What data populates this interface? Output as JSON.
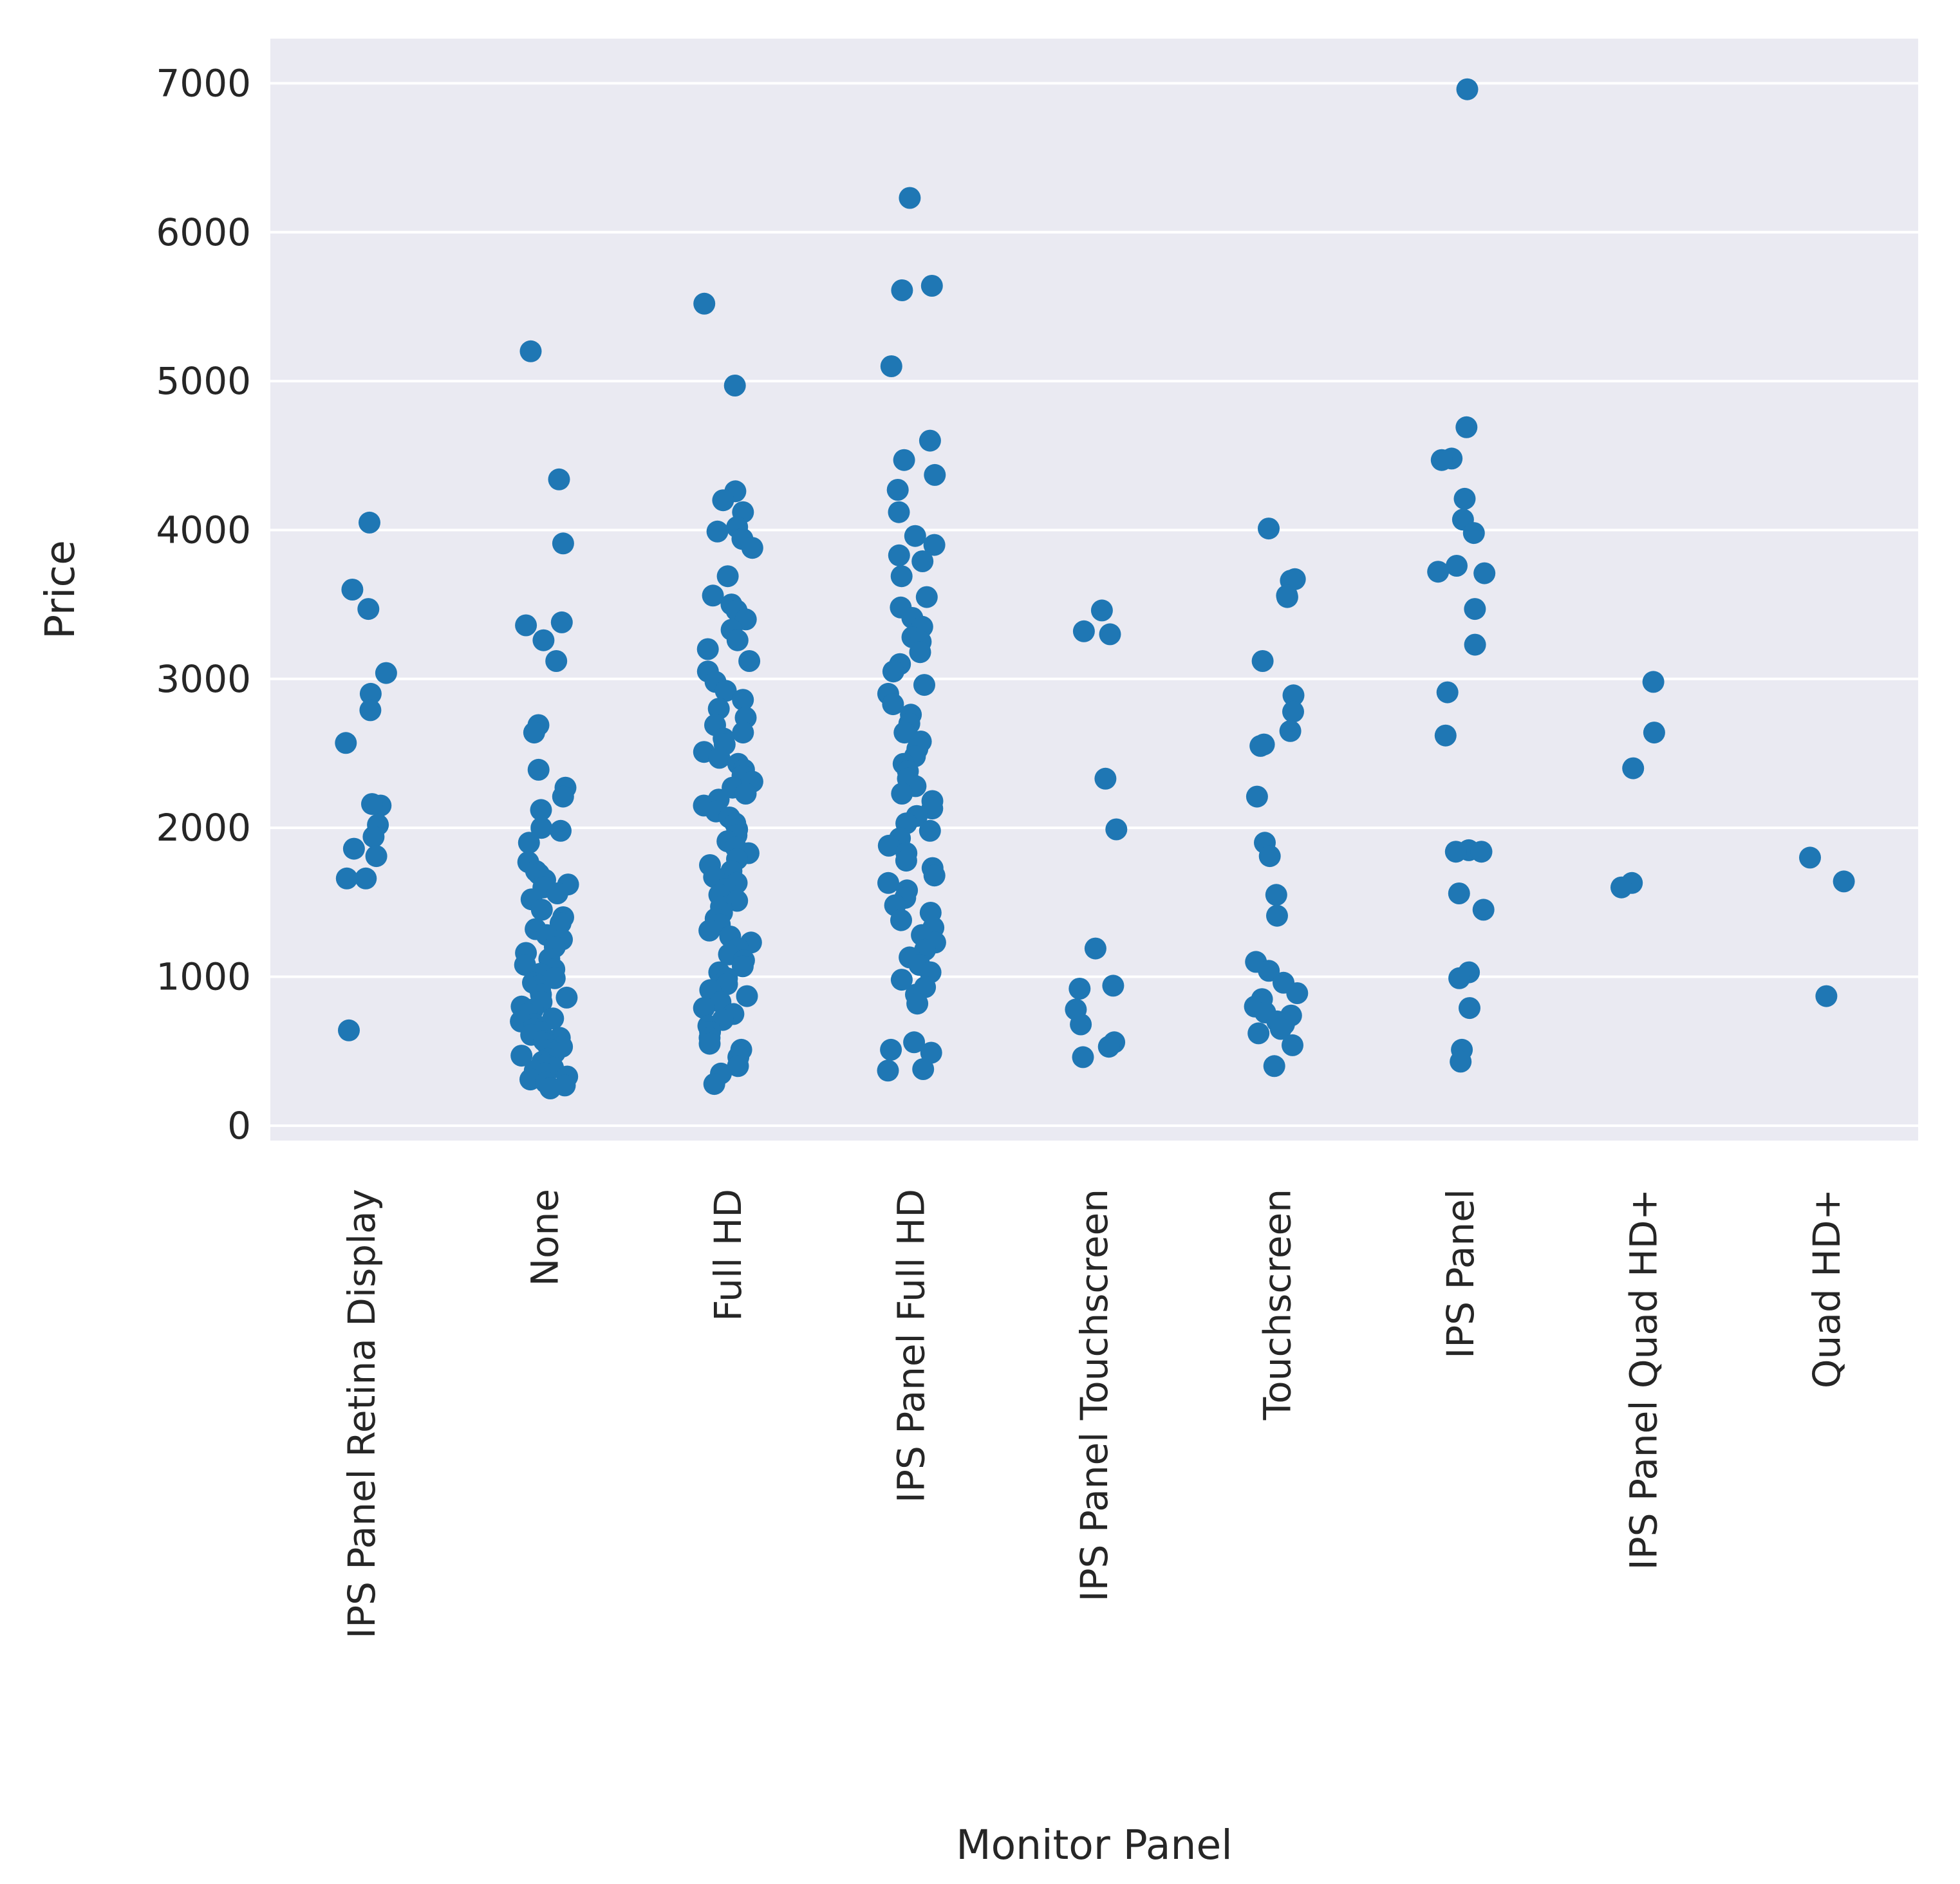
{
  "chart_data": {
    "type": "scatter",
    "style": "strip plot with horizontal jitter",
    "xlabel": "Monitor Panel",
    "ylabel": "Price",
    "ylim": [
      -100,
      7300
    ],
    "yticks": [
      0,
      1000,
      2000,
      3000,
      4000,
      5000,
      6000,
      7000
    ],
    "grid": true,
    "point_color": "#1f77b4",
    "background_color": "#eaeaf2",
    "grid_color": "#ffffff",
    "categories": [
      "IPS Panel Retina Display",
      "None",
      "Full HD",
      "IPS Panel Full HD",
      "IPS Panel Touchscreen",
      "Touchscreen",
      "IPS Panel",
      "IPS Panel Quad HD+",
      "Quad HD+"
    ],
    "points": {
      "IPS Panel Retina Display": [
        4050,
        3600,
        3470,
        3040,
        2900,
        2790,
        2570,
        2150,
        2160,
        2020,
        1940,
        1860,
        1810,
        1660,
        1660,
        640
      ],
      "None": [
        5200,
        4340,
        3910,
        3380,
        3360,
        3260,
        3120,
        2690,
        2640,
        2390,
        2270,
        2210,
        2120,
        2000,
        1980,
        1900,
        1770,
        1710,
        1690,
        1650,
        1620,
        1600,
        1560,
        1520,
        1450,
        1400,
        1360,
        1320,
        1280,
        1250,
        1200,
        1160,
        1120,
        1080,
        1050,
        1020,
        990,
        960,
        940,
        910,
        880,
        860,
        830,
        800,
        780,
        750,
        720,
        700,
        680,
        650,
        630,
        610,
        590,
        570,
        550,
        530,
        510,
        490,
        470,
        450,
        430,
        410,
        390,
        370,
        350,
        330,
        310,
        290,
        270,
        250
      ],
      "Full HD": [
        5520,
        4970,
        4260,
        4200,
        4120,
        4020,
        3990,
        3940,
        3880,
        3690,
        3560,
        3500,
        3460,
        3400,
        3330,
        3260,
        3200,
        3120,
        3050,
        2980,
        2920,
        2860,
        2800,
        2740,
        2690,
        2640,
        2600,
        2560,
        2510,
        2470,
        2430,
        2390,
        2350,
        2310,
        2270,
        2230,
        2190,
        2150,
        2110,
        2070,
        2030,
        1990,
        1950,
        1910,
        1870,
        1830,
        1790,
        1750,
        1710,
        1670,
        1630,
        1590,
        1550,
        1510,
        1470,
        1430,
        1390,
        1350,
        1310,
        1270,
        1230,
        1190,
        1150,
        1110,
        1070,
        1030,
        990,
        950,
        910,
        870,
        830,
        790,
        750,
        710,
        670,
        630,
        590,
        550,
        510,
        460,
        400,
        350,
        280
      ],
      "IPS Panel Full HD": [
        6230,
        5640,
        5610,
        5100,
        4600,
        4470,
        4370,
        4270,
        4120,
        3960,
        3900,
        3830,
        3790,
        3690,
        3550,
        3480,
        3410,
        3350,
        3280,
        3250,
        3180,
        3100,
        3050,
        2960,
        2900,
        2830,
        2760,
        2700,
        2640,
        2580,
        2530,
        2480,
        2430,
        2380,
        2330,
        2280,
        2230,
        2180,
        2130,
        2080,
        2030,
        1980,
        1930,
        1880,
        1830,
        1780,
        1730,
        1680,
        1630,
        1580,
        1530,
        1480,
        1430,
        1380,
        1330,
        1280,
        1230,
        1180,
        1130,
        1080,
        1030,
        980,
        930,
        880,
        820,
        560,
        510,
        490,
        380,
        370
      ],
      "IPS Panel Touchscreen": [
        3460,
        3320,
        3300,
        2330,
        1990,
        1190,
        940,
        920,
        780,
        680,
        560,
        530,
        460
      ],
      "Touchscreen": [
        4010,
        3670,
        3660,
        3560,
        3550,
        3120,
        2890,
        2780,
        2650,
        2560,
        2550,
        2210,
        1900,
        1810,
        1550,
        1410,
        1100,
        1040,
        960,
        890,
        850,
        800,
        760,
        740,
        700,
        680,
        650,
        620,
        540,
        400
      ],
      "IPS Panel": [
        6960,
        4690,
        4480,
        4470,
        4210,
        4070,
        3980,
        3760,
        3720,
        3710,
        3470,
        3230,
        2910,
        2620,
        1850,
        1840,
        1840,
        1560,
        1450,
        1030,
        990,
        790,
        510,
        430
      ],
      "IPS Panel Quad HD+": [
        2980,
        2640,
        2400,
        1630,
        1600
      ],
      "Quad HD+": [
        1800,
        1640,
        870
      ]
    }
  }
}
